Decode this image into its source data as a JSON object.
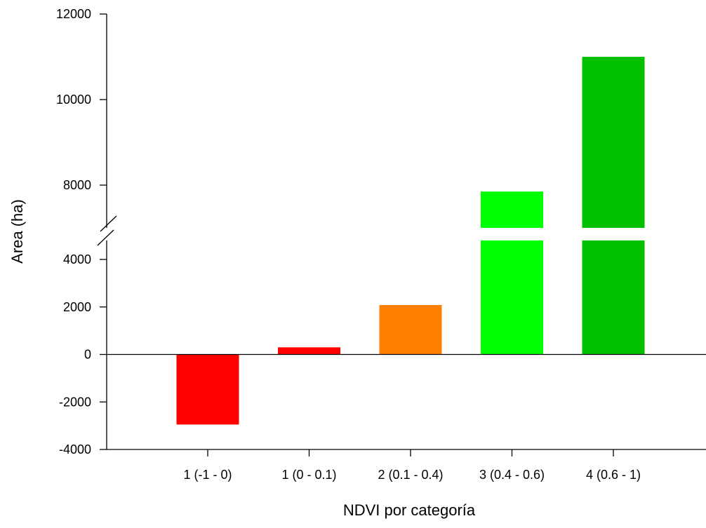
{
  "chart_data": {
    "type": "bar",
    "xlabel": "NDVI por categoría",
    "ylabel": "Area (ha)",
    "categories": [
      "1 (-1 - 0)",
      "1 (0 - 0.1)",
      "2 (0.1 - 0.4)",
      "3 (0.4 - 0.6)",
      "4 (0.6 - 1)"
    ],
    "values": [
      -2950,
      300,
      2080,
      7850,
      11000
    ],
    "colors": [
      "#ff0000",
      "#ff0000",
      "#ff8000",
      "#00ff00",
      "#00c000"
    ],
    "ylim": [
      -4000,
      12000
    ],
    "y_axis_break": [
      4800,
      7000
    ],
    "yticks_lower": [
      -4000,
      -2000,
      0,
      2000,
      4000
    ],
    "yticks_upper": [
      8000,
      10000,
      12000
    ],
    "ytick_labels_lower": [
      "-4000",
      "-2000",
      "0",
      "2000",
      "4000"
    ],
    "ytick_labels_upper": [
      "8000",
      "10000",
      "12000"
    ],
    "grid": false,
    "legend": "none"
  }
}
